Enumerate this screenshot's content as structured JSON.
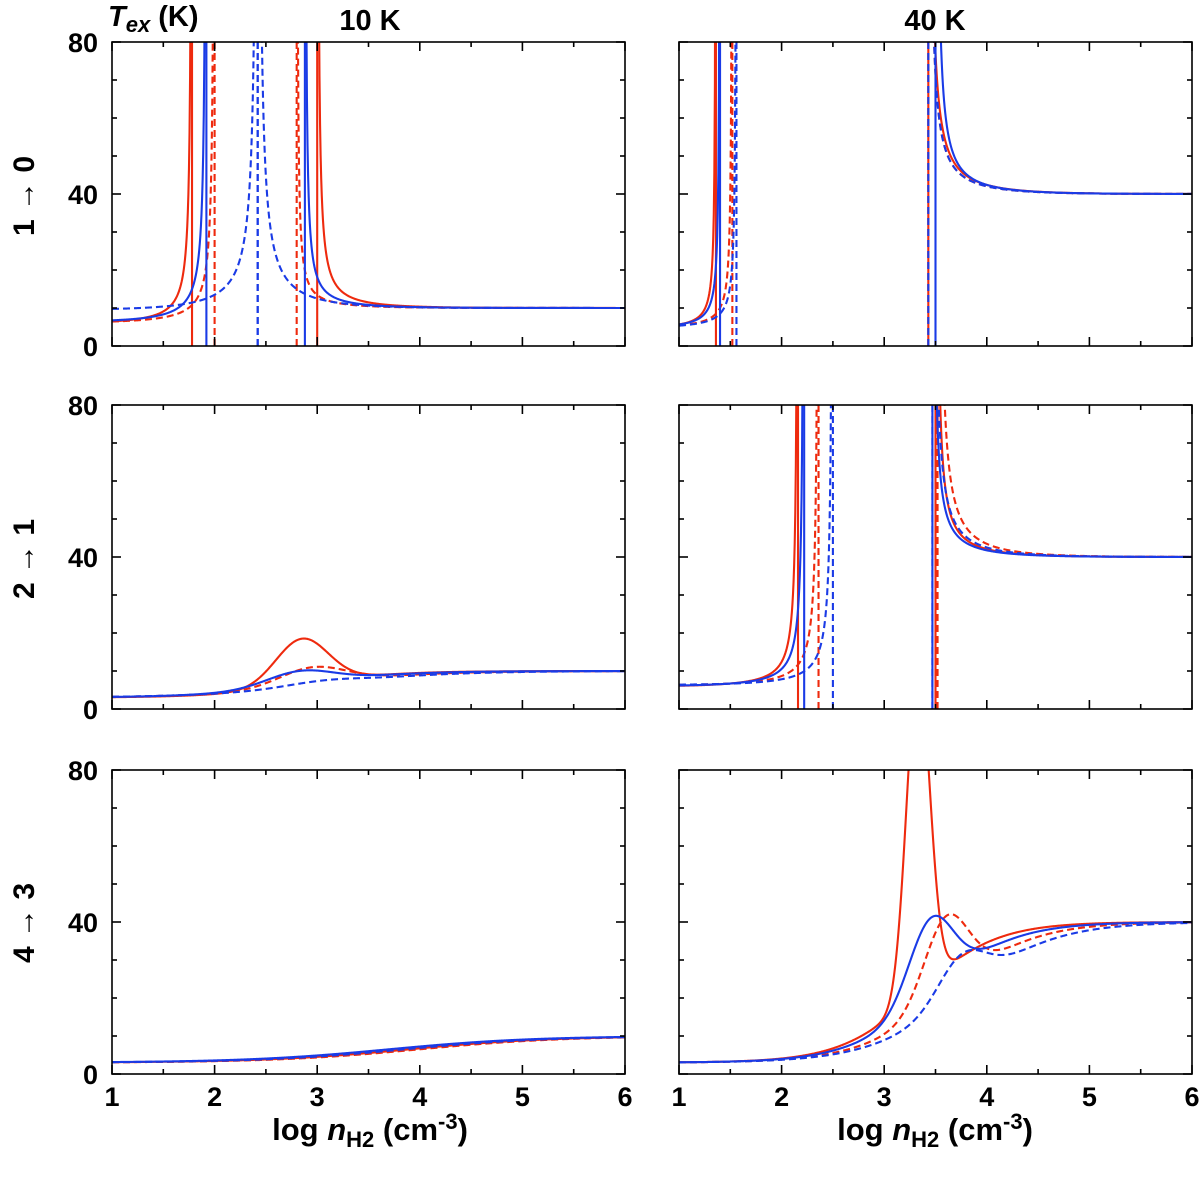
{
  "figure": {
    "corner_label_symbol": "T",
    "corner_label_sub": "ex",
    "corner_label_unit": " (K)",
    "x_label_prefix": "log ",
    "x_label_symbol": "n",
    "x_label_sub": "H2",
    "x_label_unit": " (cm",
    "x_label_exp": "-3",
    "x_label_close": ")"
  },
  "colors": {
    "red": "#ee2a0e",
    "blue": "#1a3be6"
  },
  "chart_data": {
    "type": "line",
    "xlim": [
      1,
      6
    ],
    "ylim": [
      0,
      80
    ],
    "x_ticks": [
      "1",
      "2",
      "3",
      "4",
      "5",
      "6"
    ],
    "y_ticks": [
      "0",
      "40",
      "80"
    ],
    "columns": [
      {
        "title": "10 K",
        "Tk": 10
      },
      {
        "title": "40 K",
        "Tk": 40
      }
    ],
    "rows": [
      {
        "label": "1 → 0"
      },
      {
        "label": "2 → 1"
      },
      {
        "label": "4 → 3"
      }
    ],
    "series_styles": [
      {
        "name": "red-solid",
        "color": "red",
        "dash": false
      },
      {
        "name": "red-dashed",
        "color": "red",
        "dash": true
      },
      {
        "name": "blue-solid",
        "color": "blue",
        "dash": false
      },
      {
        "name": "blue-dashed",
        "color": "blue",
        "dash": true
      }
    ],
    "panels": [
      {
        "row": 0,
        "col": 0,
        "kind": "maser",
        "series": [
          {
            "style": "red-solid",
            "x1": 1.78,
            "x2": 3.0,
            "lowAmp": 2.9,
            "highAmp": 3.2
          },
          {
            "style": "red-dashed",
            "x1": 2.0,
            "x2": 2.8,
            "lowAmp": 3.1,
            "highAmp": 2.0
          },
          {
            "style": "blue-solid",
            "x1": 1.92,
            "x2": 2.88,
            "lowAmp": 3.3,
            "highAmp": 2.6
          },
          {
            "style": "blue-dashed",
            "x1": 2.42,
            "x2": 2.42,
            "lowAmp": 6.5,
            "highAmp": 7.0
          }
        ]
      },
      {
        "row": 0,
        "col": 1,
        "kind": "maser",
        "series": [
          {
            "style": "red-solid",
            "x1": 1.36,
            "x2": 3.43,
            "lowAmp": 1.5,
            "highAmp": 6.5
          },
          {
            "style": "red-dashed",
            "x1": 1.52,
            "x2": 3.43,
            "lowAmp": 1.7,
            "highAmp": 5.5
          },
          {
            "style": "blue-solid",
            "x1": 1.4,
            "x2": 3.5,
            "lowAmp": 1.6,
            "highAmp": 5.2
          },
          {
            "style": "blue-dashed",
            "x1": 1.56,
            "x2": 3.43,
            "lowAmp": 1.7,
            "highAmp": 5.5
          }
        ]
      },
      {
        "row": 1,
        "col": 0,
        "kind": "peak",
        "series": [
          {
            "style": "red-solid",
            "peak": 22,
            "center": 2.85,
            "width": 0.36,
            "rise": 0.45
          },
          {
            "style": "red-dashed",
            "peak": 14.5,
            "center": 2.95,
            "width": 0.45,
            "rise": 0.55
          },
          {
            "style": "blue-solid",
            "peak": 13.5,
            "center": 2.82,
            "width": 0.45,
            "rise": 0.5
          },
          {
            "style": "blue-dashed",
            "peak": 11,
            "center": 3.05,
            "width": 0.5,
            "rise": 0.6
          }
        ]
      },
      {
        "row": 1,
        "col": 1,
        "kind": "maser",
        "series": [
          {
            "style": "red-solid",
            "x1": 2.16,
            "x2": 3.5,
            "lowAmp": 2.9,
            "highAmp": 4.5
          },
          {
            "style": "red-dashed",
            "x1": 2.36,
            "x2": 3.52,
            "lowAmp": 3.2,
            "highAmp": 7.0
          },
          {
            "style": "blue-solid",
            "x1": 2.22,
            "x2": 3.47,
            "lowAmp": 3.0,
            "highAmp": 4.2
          },
          {
            "style": "blue-dashed",
            "x1": 2.5,
            "x2": 3.47,
            "lowAmp": 3.3,
            "highAmp": 6.0
          }
        ]
      },
      {
        "row": 2,
        "col": 0,
        "kind": "peak",
        "series": [
          {
            "style": "red-solid",
            "peak": 10,
            "center": 3.9,
            "width": 0.6,
            "rise": 0.7
          },
          {
            "style": "red-dashed",
            "peak": 10,
            "center": 4.0,
            "width": 0.6,
            "rise": 0.7
          },
          {
            "style": "blue-solid",
            "peak": 10,
            "center": 3.7,
            "width": 0.6,
            "rise": 0.7
          },
          {
            "style": "blue-dashed",
            "peak": 10,
            "center": 3.85,
            "width": 0.6,
            "rise": 0.7
          }
        ]
      },
      {
        "row": 2,
        "col": 1,
        "kind": "peak",
        "series": [
          {
            "style": "red-solid",
            "peak": 125,
            "center": 3.33,
            "width": 0.16,
            "rise": 0.38
          },
          {
            "style": "red-dashed",
            "peak": 60,
            "center": 3.6,
            "width": 0.3,
            "rise": 0.42
          },
          {
            "style": "blue-solid",
            "peak": 59.5,
            "center": 3.45,
            "width": 0.3,
            "rise": 0.4
          },
          {
            "style": "blue-dashed",
            "peak": 50,
            "center": 3.75,
            "width": 0.32,
            "rise": 0.45
          }
        ]
      }
    ]
  }
}
